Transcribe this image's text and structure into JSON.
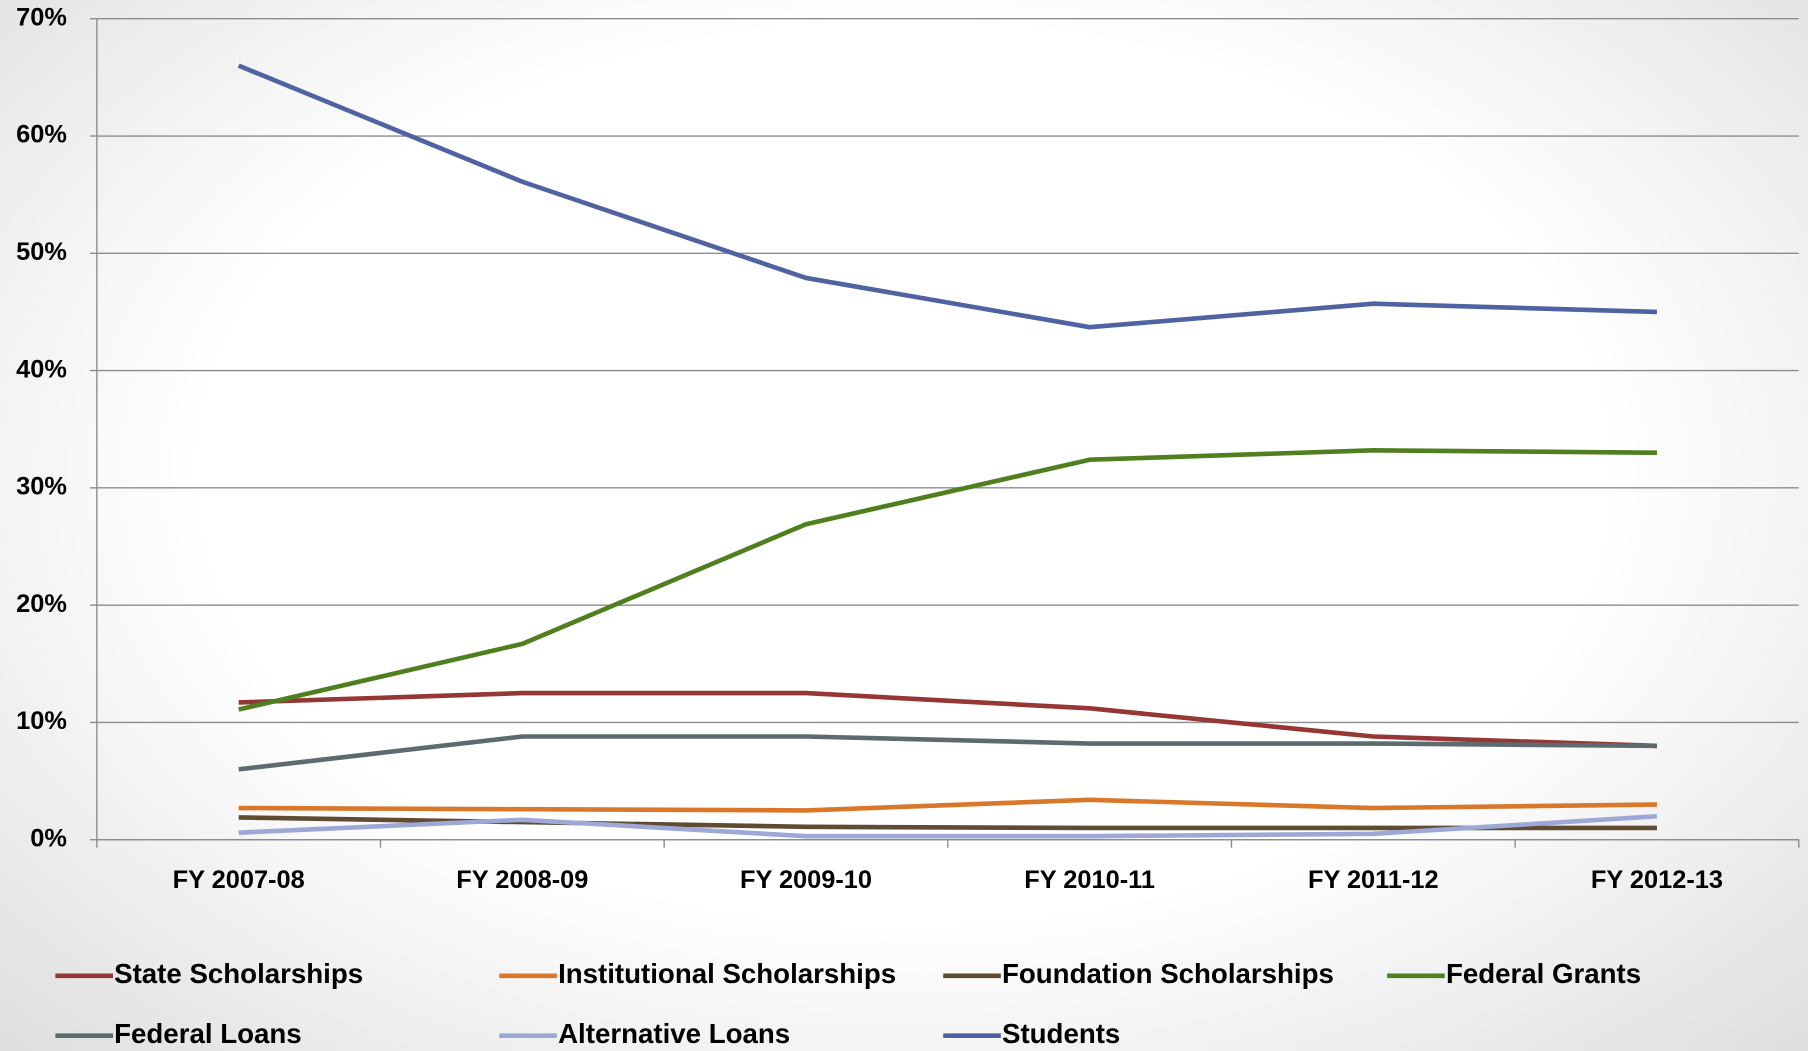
{
  "chart_data": {
    "type": "line",
    "categories": [
      "FY 2007-08",
      "FY 2008-09",
      "FY 2009-10",
      "FY 2010-11",
      "FY 2011-12",
      "FY 2012-13"
    ],
    "series": [
      {
        "name": "State Scholarships",
        "color": "#953735",
        "values": [
          11.7,
          12.5,
          12.5,
          11.2,
          8.8,
          8.0
        ]
      },
      {
        "name": "Institutional Scholarships",
        "color": "#d9782b",
        "values": [
          2.7,
          2.6,
          2.5,
          3.4,
          2.7,
          3.0
        ]
      },
      {
        "name": "Foundation Scholarships",
        "color": "#5f4b32",
        "values": [
          1.9,
          1.5,
          1.1,
          1.0,
          1.0,
          1.0
        ]
      },
      {
        "name": "Federal Grants",
        "color": "#4f7f1f",
        "values": [
          11.1,
          16.7,
          26.9,
          32.4,
          33.2,
          33.0
        ]
      },
      {
        "name": "Federal Loans",
        "color": "#5e6b6e",
        "values": [
          6.0,
          8.8,
          8.8,
          8.2,
          8.2,
          8.0
        ]
      },
      {
        "name": "Alternative Loans",
        "color": "#9da8d6",
        "values": [
          0.6,
          1.7,
          0.3,
          0.3,
          0.5,
          2.0
        ]
      },
      {
        "name": "Students",
        "color": "#4f62a1",
        "values": [
          66.0,
          56.1,
          47.9,
          43.7,
          45.7,
          45.0
        ]
      }
    ],
    "ylim": [
      0,
      70
    ],
    "yticks": [
      {
        "value": 0,
        "label": "0%"
      },
      {
        "value": 10,
        "label": "10%"
      },
      {
        "value": 20,
        "label": "20%"
      },
      {
        "value": 30,
        "label": "30%"
      },
      {
        "value": 40,
        "label": "40%"
      },
      {
        "value": 50,
        "label": "50%"
      },
      {
        "value": 60,
        "label": "60%"
      },
      {
        "value": 70,
        "label": "70%"
      }
    ],
    "grid": true,
    "legend": "bottom"
  }
}
